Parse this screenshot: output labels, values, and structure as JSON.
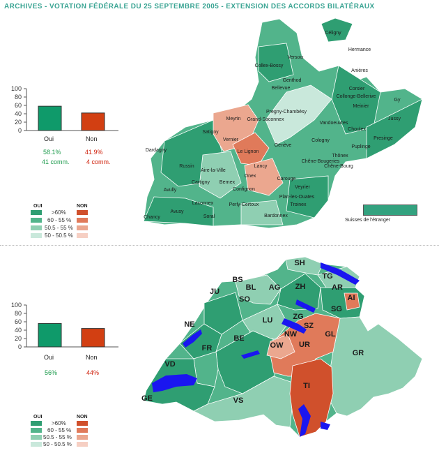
{
  "page": {
    "title": "ARCHIVES - VOTATION FÉDÉRALE DU 25 SEPTEMBRE 2005 - EXTENSION DES ACCORDS BILATÉRAUX"
  },
  "colors": {
    "title": "#3aa493",
    "yes_bar": "#0f9a6a",
    "no_bar": "#d23f12",
    "yes_text": "#1b9a4b",
    "no_text": "#d0240f",
    "yes_scale": [
      "#2f9e72",
      "#52b48b",
      "#8fcfb2",
      "#c9e8db"
    ],
    "no_scale": [
      "#d0502c",
      "#e07a5a",
      "#eba78f",
      "#f6cfc3"
    ],
    "lake": "#1a16f0"
  },
  "geneva": {
    "chart_data": {
      "type": "bar",
      "categories": [
        "Oui",
        "Non"
      ],
      "values": [
        58.1,
        41.9
      ],
      "ylim": [
        0,
        100
      ],
      "yticks": [
        "0",
        "20",
        "40",
        "60",
        "80",
        "100"
      ]
    },
    "yes_pct": "58.1%",
    "no_pct": "41.9%",
    "yes_comm": "41 comm.",
    "no_comm": "4 comm.",
    "legend": {
      "oui": "OUI",
      "non": "NON",
      "rows": [
        ">60%",
        "60 - 55 %",
        "50.5 - 55 %",
        "50 - 50.5 %"
      ]
    },
    "abroad_label": "Suisses de l'étranger",
    "communes": [
      "Céligny",
      "Versoix",
      "Collex-Bossy",
      "Hermance",
      "Anières",
      "Genthod",
      "Bellevue",
      "Corsier",
      "Collonge-Bellerive",
      "Meinier",
      "Gy",
      "Pregny-Chambésy",
      "Meyrin",
      "Grand-Saconnex",
      "Jussy",
      "Vandoeuvres",
      "Choulex",
      "Satigny",
      "Presinge",
      "Cologny",
      "Puplinge",
      "Vernier",
      "Genève",
      "Le Lignon",
      "Dardagny",
      "Thônex",
      "Chêne-Bougeries",
      "Chêne-Bourg",
      "Russin",
      "Lancy",
      "Aire-la-Ville",
      "Carouge",
      "Onex",
      "Cartigny",
      "Bernex",
      "Veyrier",
      "Avully",
      "Confignon",
      "Plan-les-Ouates",
      "Laconnex",
      "Perly-Certoux",
      "Troinex",
      "Chancy",
      "Avusy",
      "Soral",
      "Bardonnex"
    ]
  },
  "switzerland": {
    "chart_data": {
      "type": "bar",
      "categories": [
        "Oui",
        "Non"
      ],
      "values": [
        56,
        44
      ],
      "ylim": [
        0,
        100
      ],
      "yticks": [
        "0",
        "20",
        "40",
        "60",
        "80",
        "100"
      ]
    },
    "yes_pct": "56%",
    "no_pct": "44%",
    "legend": {
      "oui": "OUI",
      "non": "NON",
      "rows": [
        ">60%",
        "60 - 55 %",
        "50.5 - 55 %",
        "50 - 50.5 %"
      ]
    },
    "cantons": [
      "SH",
      "BS",
      "TG",
      "BL",
      "AG",
      "ZH",
      "AR",
      "JU",
      "SO",
      "AI",
      "SG",
      "ZG",
      "LU",
      "NE",
      "SZ",
      "NW",
      "GL",
      "FR",
      "BE",
      "OW",
      "UR",
      "GR",
      "VD",
      "TI",
      "GE",
      "VS"
    ]
  }
}
